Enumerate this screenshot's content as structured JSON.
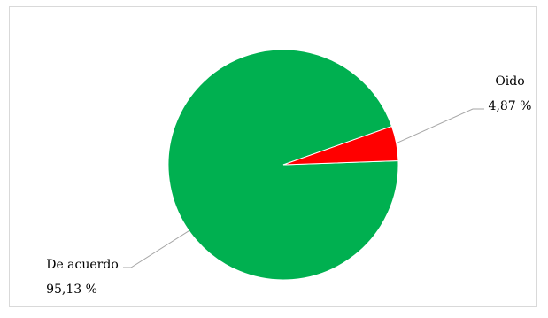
{
  "chart_data": {
    "type": "pie",
    "title": "",
    "slices": [
      {
        "label": "De acuerdo",
        "value_text": "95,13 %",
        "value": 95.13,
        "color": "#00B050"
      },
      {
        "label": "Oido",
        "value_text": "4,87 %",
        "value": 4.87,
        "color": "#FF0000"
      }
    ],
    "legend": "none"
  }
}
